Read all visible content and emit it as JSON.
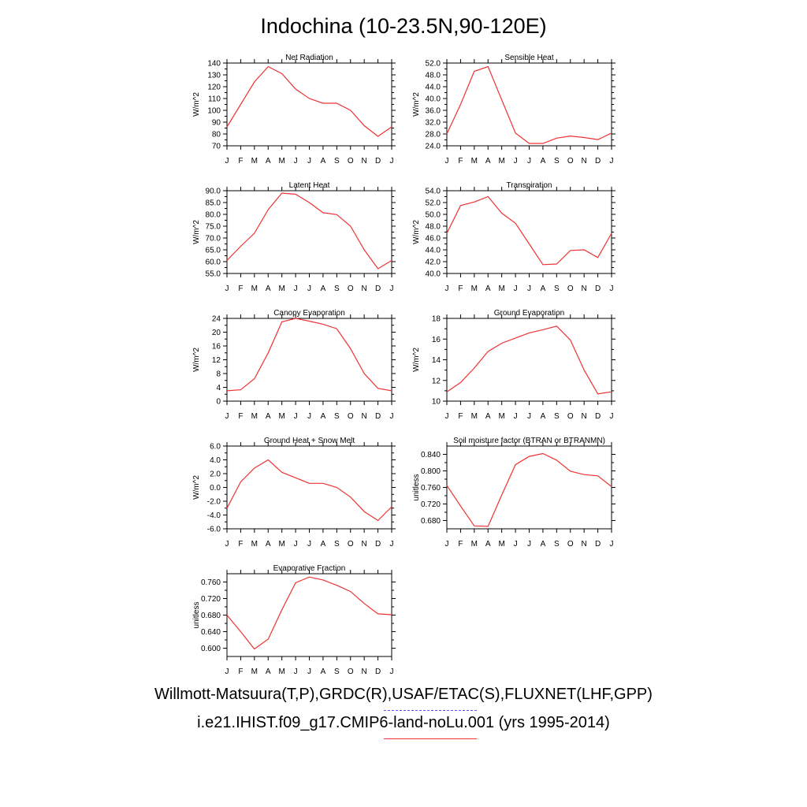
{
  "title": "Indochina (10-23.5N,90-120E)",
  "legend": {
    "obs": "Willmott-Matsuura(T,P),GRDC(R),USAF/ETAC(S),FLUXNET(LHF,GPP)",
    "model": "i.e21.IHIST.f09_g17.CMIP6-land-noLu.001 (yrs 1995-2014)",
    "obs_color": "#5555ee",
    "model_color": "#ee3333"
  },
  "months": [
    "J",
    "F",
    "M",
    "A",
    "M",
    "J",
    "J",
    "A",
    "S",
    "O",
    "N",
    "D",
    "J"
  ],
  "chart_data": [
    {
      "type": "line",
      "title": "Net Radiation",
      "ylabel": "W/m^2",
      "ylim": [
        70,
        140
      ],
      "yticks": [
        "70",
        "80",
        "90",
        "100",
        "110",
        "120",
        "130",
        "140"
      ],
      "series": [
        {
          "values": [
            86,
            105,
            124,
            137,
            131,
            118,
            110,
            106,
            106,
            100,
            87,
            78,
            86
          ]
        }
      ]
    },
    {
      "type": "line",
      "title": "Sensible Heat",
      "ylabel": "W/m^2",
      "ylim": [
        24,
        52
      ],
      "yticks": [
        "24.0",
        "28.0",
        "32.0",
        "36.0",
        "40.0",
        "44.0",
        "48.0",
        "52.0"
      ],
      "series": [
        {
          "values": [
            28,
            38,
            49.2,
            50.8,
            39.5,
            28.3,
            24.8,
            24.8,
            26.6,
            27.3,
            26.8,
            26.1,
            28.3
          ]
        }
      ]
    },
    {
      "type": "line",
      "title": "Latent Heat",
      "ylabel": "W/m^2",
      "ylim": [
        55,
        90
      ],
      "yticks": [
        "55.0",
        "60.0",
        "65.0",
        "70.0",
        "75.0",
        "80.0",
        "85.0",
        "90.0"
      ],
      "series": [
        {
          "values": [
            60.5,
            66.5,
            72,
            82,
            89,
            88.5,
            85,
            80.7,
            79.9,
            75,
            65,
            57,
            60.5
          ]
        }
      ]
    },
    {
      "type": "line",
      "title": "Transpiration",
      "ylabel": "W/m^2",
      "ylim": [
        40,
        54
      ],
      "yticks": [
        "40.0",
        "42.0",
        "44.0",
        "46.0",
        "48.0",
        "50.0",
        "52.0",
        "54.0"
      ],
      "series": [
        {
          "values": [
            46.8,
            51.5,
            52.1,
            53,
            50.2,
            48.5,
            45,
            41.5,
            41.6,
            43.9,
            44,
            42.7,
            46.8
          ]
        }
      ]
    },
    {
      "type": "line",
      "title": "Canopy Evaporation",
      "ylabel": "W/m^2",
      "ylim": [
        0,
        24
      ],
      "yticks": [
        "0",
        "4",
        "8",
        "12",
        "16",
        "20",
        "24"
      ],
      "series": [
        {
          "values": [
            3,
            3.3,
            6.5,
            14,
            23,
            24,
            23.2,
            22.3,
            21,
            15.2,
            8,
            3.7,
            3
          ]
        }
      ]
    },
    {
      "type": "line",
      "title": "Ground Evaporation",
      "ylabel": "W/m^2",
      "ylim": [
        10,
        18
      ],
      "yticks": [
        "10",
        "12",
        "14",
        "16",
        "18"
      ],
      "series": [
        {
          "values": [
            10.9,
            11.8,
            13.2,
            14.8,
            15.6,
            16.1,
            16.6,
            16.9,
            17.25,
            15.9,
            13,
            10.7,
            10.9
          ]
        }
      ]
    },
    {
      "type": "line",
      "title": "Ground Heat + Snow Melt",
      "ylabel": "W/m^2",
      "ylim": [
        -6,
        6
      ],
      "yticks": [
        "-6.0",
        "-4.0",
        "-2.0",
        "0.0",
        "2.0",
        "4.0",
        "6.0"
      ],
      "series": [
        {
          "values": [
            -3,
            0.8,
            2.8,
            4,
            2.2,
            1.4,
            0.6,
            0.6,
            0,
            -1.4,
            -3.5,
            -4.8,
            -2.8
          ]
        }
      ]
    },
    {
      "type": "line",
      "title": "Soil moisture factor (BTRAN or BTRANMN)",
      "ylabel": "unitless",
      "ylim": [
        0.66,
        0.86
      ],
      "yticks": [
        "0.680",
        "0.720",
        "0.760",
        "0.800",
        "0.840"
      ],
      "series": [
        {
          "values": [
            0.765,
            0.715,
            0.667,
            0.666,
            0.742,
            0.815,
            0.835,
            0.842,
            0.826,
            0.799,
            0.791,
            0.788,
            0.762
          ]
        }
      ]
    },
    {
      "type": "line",
      "title": "Evaporative Fraction",
      "ylabel": "unitless",
      "ylim": [
        0.58,
        0.78
      ],
      "yticks": [
        "0.600",
        "0.640",
        "0.680",
        "0.720",
        "0.760"
      ],
      "series": [
        {
          "values": [
            0.68,
            0.64,
            0.598,
            0.622,
            0.693,
            0.758,
            0.772,
            0.765,
            0.752,
            0.737,
            0.708,
            0.683,
            0.681
          ]
        }
      ]
    }
  ]
}
